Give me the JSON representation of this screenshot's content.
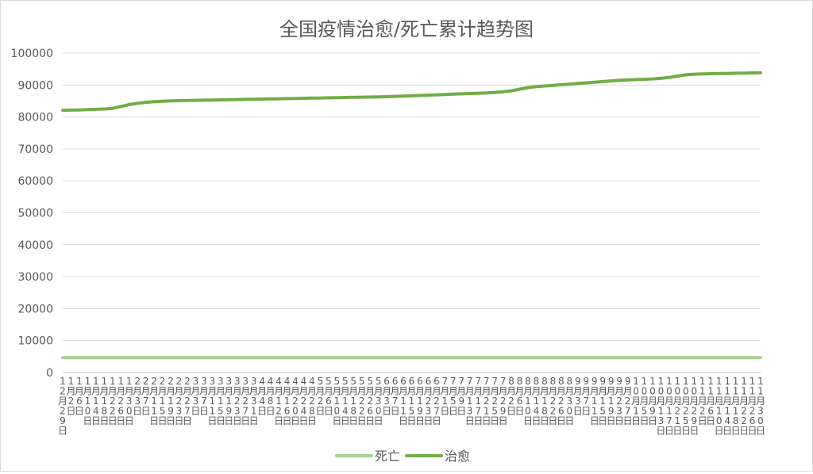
{
  "chart_data": {
    "type": "line",
    "title": "全国疫情治愈/死亡累计趋势图",
    "ylim": [
      0,
      100000
    ],
    "y_ticks": [
      0,
      10000,
      20000,
      30000,
      40000,
      50000,
      60000,
      70000,
      80000,
      90000,
      100000
    ],
    "grid": "horizontal",
    "legend_position": "bottom",
    "x": [
      "12月29日",
      "1月2日",
      "1月6日",
      "1月10日",
      "1月14日",
      "1月18日",
      "1月22日",
      "1月26日",
      "1月30日",
      "2月3日",
      "2月7日",
      "2月11日",
      "2月15日",
      "2月19日",
      "2月23日",
      "2月27日",
      "3月3日",
      "3月7日",
      "3月11日",
      "3月15日",
      "3月19日",
      "3月23日",
      "3月27日",
      "3月31日",
      "4月4日",
      "4月8日",
      "4月12日",
      "4月16日",
      "4月20日",
      "4月24日",
      "4月28日",
      "5月2日",
      "5月6日",
      "5月10日",
      "5月14日",
      "5月18日",
      "5月22日",
      "5月26日",
      "5月30日",
      "6月3日",
      "6月7日",
      "6月11日",
      "6月15日",
      "6月19日",
      "6月23日",
      "6月27日",
      "7月1日",
      "7月5日",
      "7月9日",
      "7月13日",
      "7月17日",
      "7月21日",
      "7月25日",
      "7月29日",
      "8月2日",
      "8月6日",
      "8月10日",
      "8月14日",
      "8月18日",
      "8月22日",
      "8月26日",
      "8月30日",
      "9月3日",
      "9月7日",
      "9月11日",
      "9月15日",
      "9月19日",
      "9月23日",
      "9月27日",
      "10月1日",
      "10月5日",
      "10月9日",
      "10月13日",
      "10月17日",
      "10月21日",
      "10月25日",
      "10月29日",
      "11月2日",
      "11月6日",
      "11月10日",
      "11月14日",
      "11月18日",
      "11月22日",
      "11月26日",
      "11月30日"
    ],
    "series": [
      {
        "name": "死亡",
        "color": "#a9d18e",
        "values": [
          4634,
          4634,
          4634,
          4634,
          4634,
          4634,
          4634,
          4634,
          4634,
          4634,
          4634,
          4634,
          4634,
          4634,
          4634,
          4634,
          4634,
          4634,
          4634,
          4634,
          4634,
          4634,
          4634,
          4634,
          4634,
          4634,
          4634,
          4634,
          4634,
          4634,
          4634,
          4634,
          4634,
          4634,
          4634,
          4634,
          4634,
          4634,
          4634,
          4634,
          4634,
          4634,
          4634,
          4634,
          4634,
          4634,
          4634,
          4634,
          4634,
          4634,
          4634,
          4634,
          4634,
          4634,
          4634,
          4634,
          4634,
          4634,
          4634,
          4634,
          4634,
          4634,
          4634,
          4634,
          4634,
          4634,
          4634,
          4634,
          4634,
          4634,
          4634,
          4634,
          4634,
          4634,
          4634,
          4634,
          4634,
          4634,
          4634,
          4634,
          4634,
          4634,
          4634,
          4634,
          4634
        ]
      },
      {
        "name": "治愈",
        "color": "#70ad47",
        "values": [
          82100,
          82150,
          82200,
          82300,
          82400,
          82500,
          82700,
          83300,
          83900,
          84300,
          84600,
          84800,
          84950,
          85050,
          85100,
          85150,
          85200,
          85250,
          85300,
          85350,
          85400,
          85450,
          85500,
          85550,
          85600,
          85650,
          85700,
          85750,
          85800,
          85850,
          85900,
          85950,
          86000,
          86050,
          86100,
          86150,
          86200,
          86250,
          86300,
          86350,
          86450,
          86550,
          86650,
          86750,
          86850,
          86950,
          87050,
          87150,
          87250,
          87350,
          87450,
          87550,
          87700,
          87900,
          88200,
          88700,
          89200,
          89500,
          89700,
          89900,
          90100,
          90300,
          90500,
          90700,
          90900,
          91100,
          91300,
          91500,
          91600,
          91700,
          91800,
          91900,
          92100,
          92400,
          92800,
          93200,
          93400,
          93500,
          93550,
          93600,
          93650,
          93700,
          93750,
          93800,
          93850
        ]
      }
    ]
  }
}
